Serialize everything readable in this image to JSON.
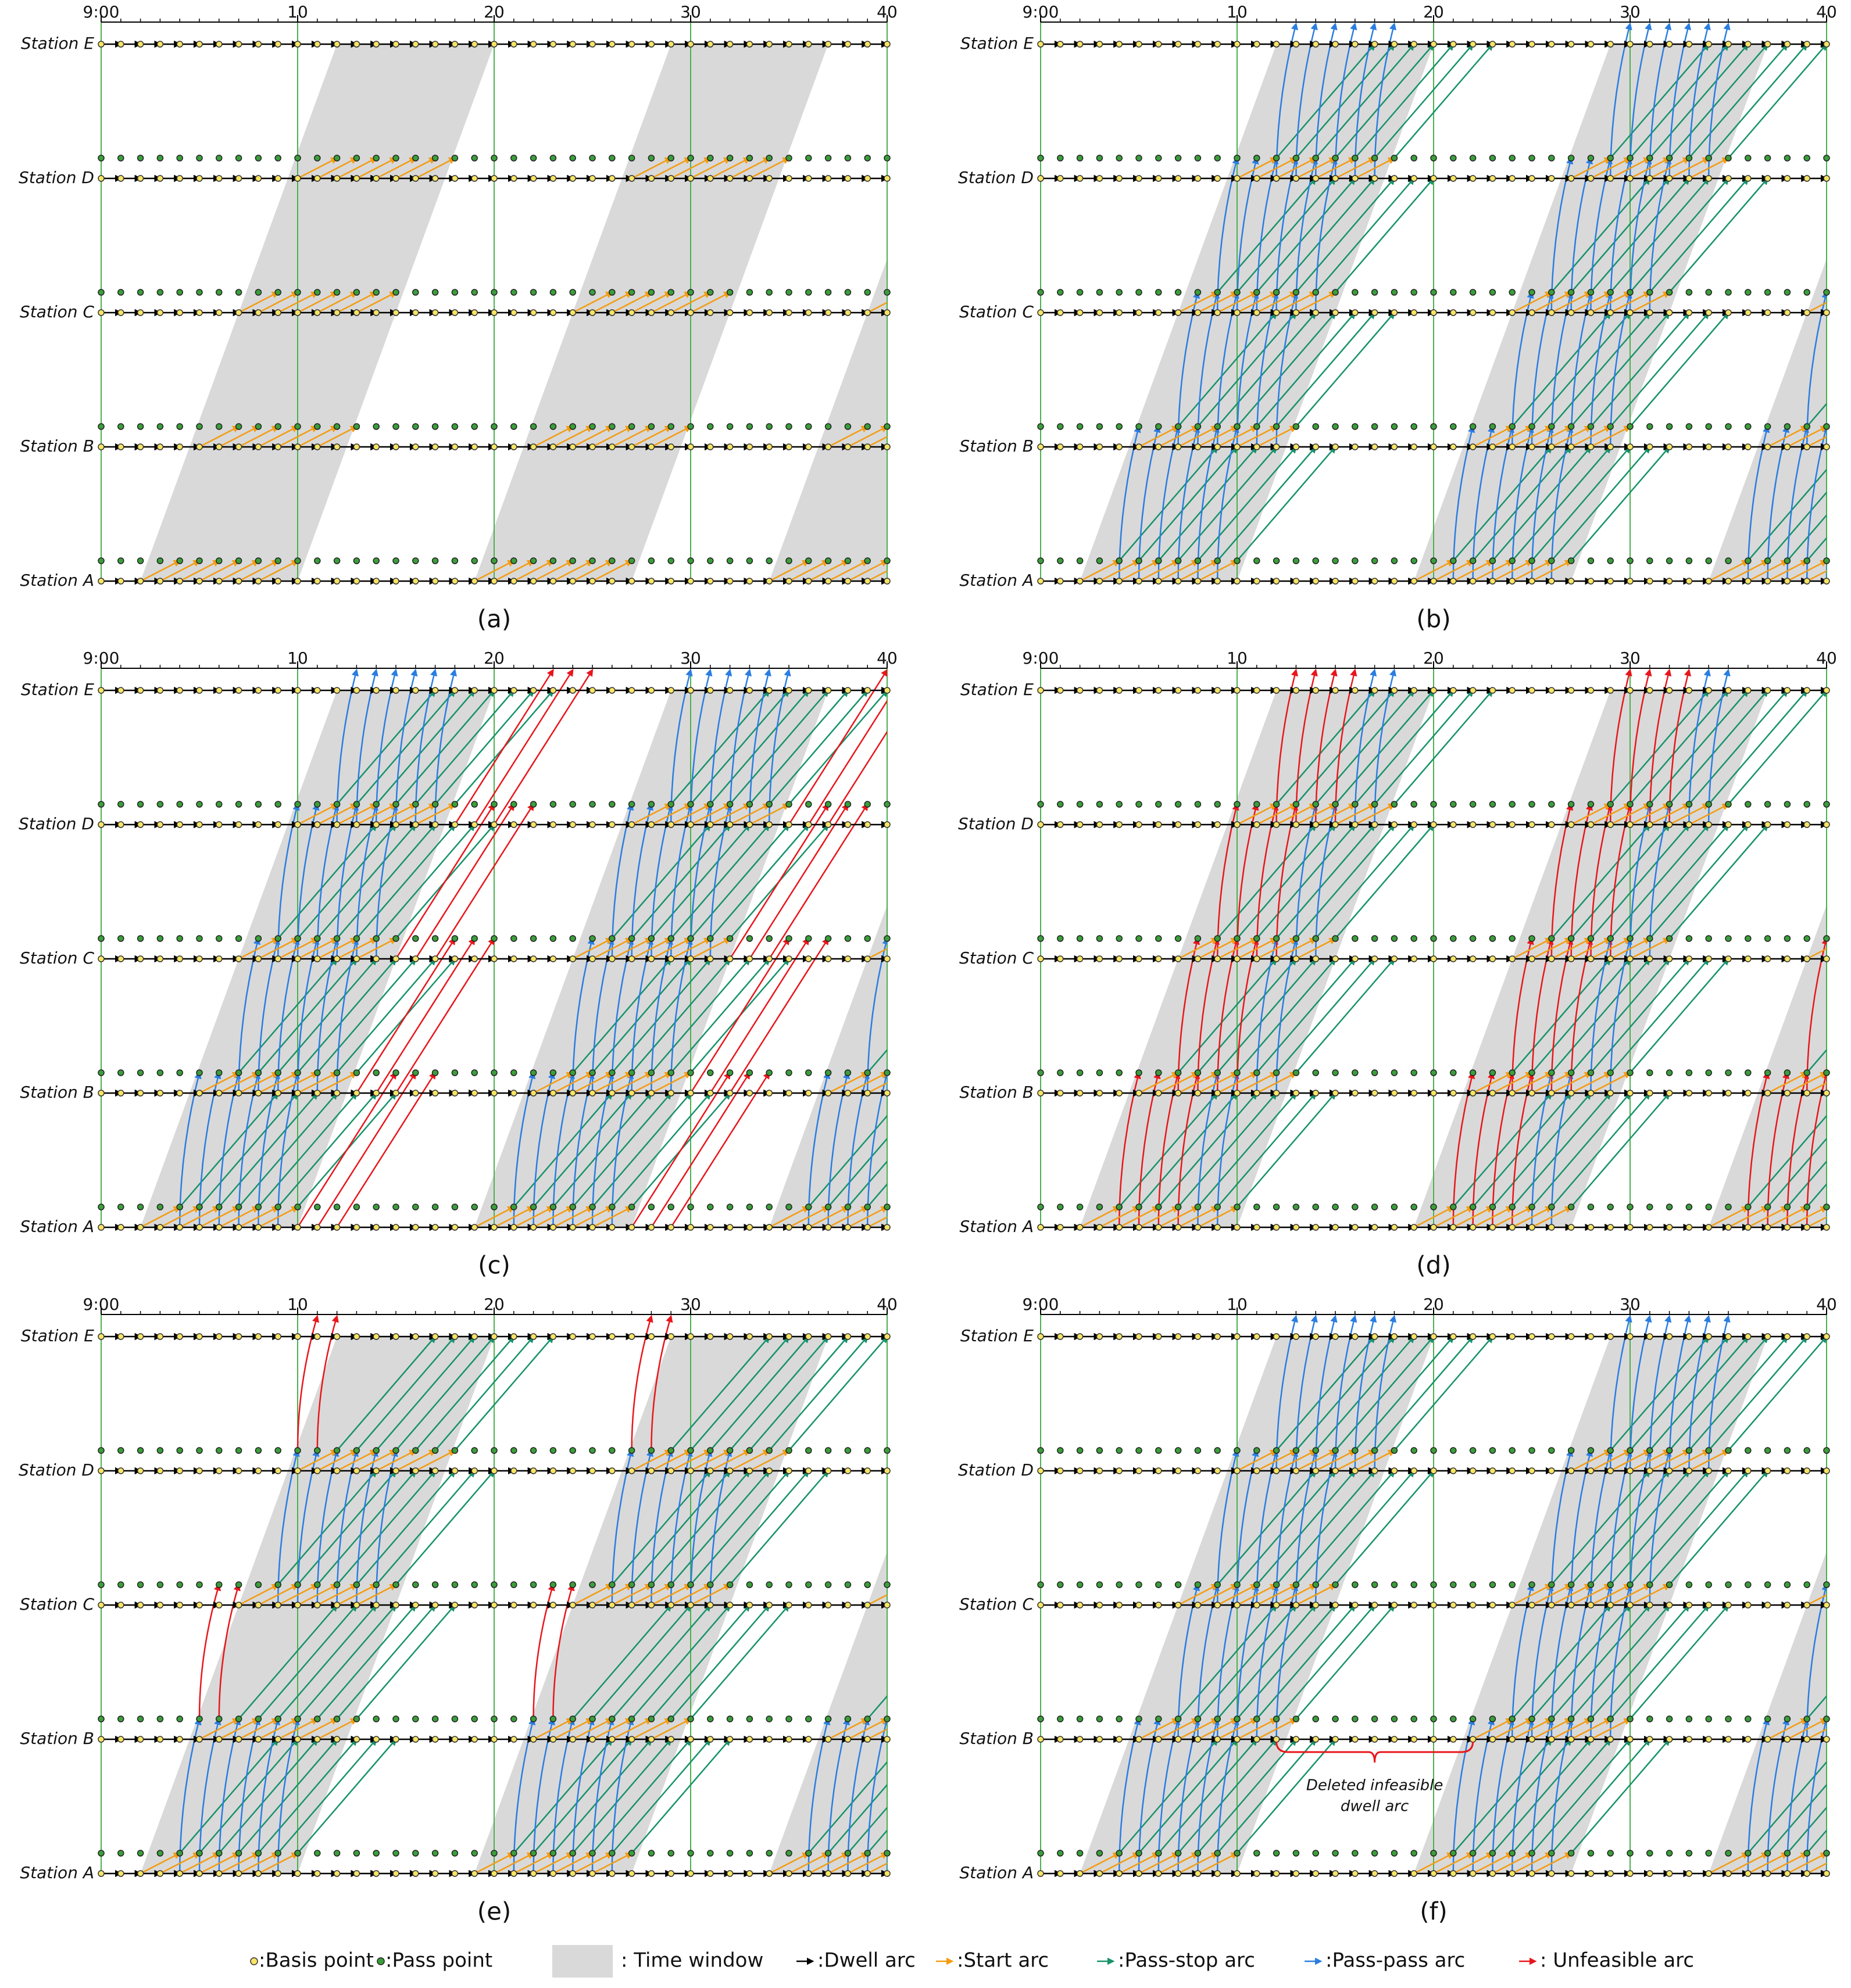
{
  "axis": {
    "ticks": [
      {
        "value": 0,
        "label": "9:00"
      },
      10,
      20,
      30,
      40
    ]
  },
  "stations": [
    "Station E",
    "Station D",
    "Station C",
    "Station B",
    "Station A"
  ],
  "panels": [
    {
      "label": "(a)"
    },
    {
      "label": "(b)"
    },
    {
      "label": "(c)"
    },
    {
      "label": "(d)"
    },
    {
      "label": "(e)"
    },
    {
      "label": "(f)"
    }
  ],
  "annotation": {
    "lines": [
      "Deleted infeasible",
      "dwell arc"
    ]
  },
  "legend": [
    ":Basis point",
    ":Pass point",
    ": Time window",
    ":Dwell arc",
    ":Start arc",
    ":Pass-stop arc",
    ":Pass-pass arc",
    ": Unfeasible arc"
  ]
}
